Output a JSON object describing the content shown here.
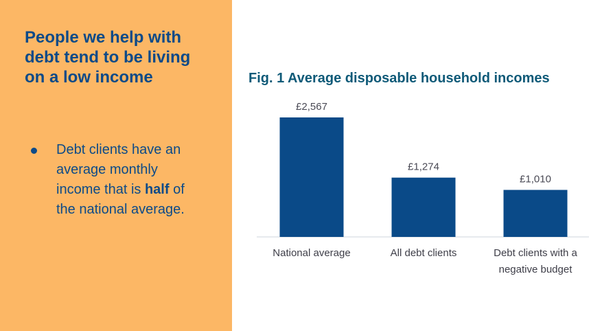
{
  "left_panel": {
    "headline": "People we help with debt tend to be living on a low income",
    "bullet": {
      "before": "Debt clients have an average monthly income that is ",
      "bold": "half",
      "after": " of the national average."
    }
  },
  "colors": {
    "panel_background": "#fcb765",
    "headline_text": "#0c4a88",
    "chart_title": "#0f5a78",
    "bar": "#0a4a88"
  },
  "chart_data": {
    "type": "bar",
    "title": "Fig. 1 Average disposable household incomes",
    "categories": [
      [
        "National average"
      ],
      [
        "All debt clients"
      ],
      [
        "Debt clients with a",
        "negative budget"
      ]
    ],
    "values": [
      2567,
      1274,
      1010
    ],
    "value_labels": [
      "£2,567",
      "£1,274",
      "£1,010"
    ],
    "xlabel": "",
    "ylabel": "",
    "ylim": [
      0,
      2567
    ],
    "grid": false
  }
}
